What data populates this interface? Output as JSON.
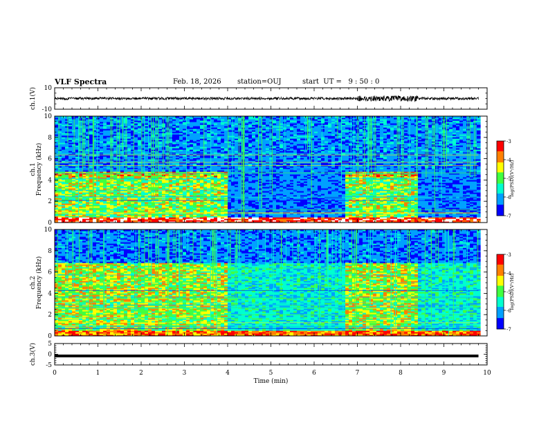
{
  "header": {
    "title": "VLF Spectra",
    "date": "Feb. 18, 2026",
    "station": "station=OUJ",
    "start": "start  UT =   9 : 50 : 0"
  },
  "chart_data": [
    {
      "type": "line",
      "panel": "waveform-ch1",
      "ylabel": "ch.1(V)",
      "ylim": [
        -10,
        10
      ],
      "ytick_labels": [
        "10",
        "-10"
      ],
      "xlim": [
        0,
        10
      ],
      "description_series": "dense waveform centred on 0 V, amplitude roughly ±1.5 V with bursts up to ±3 V near 7–8 min"
    },
    {
      "type": "heatmap",
      "panel": "spectrogram-ch1",
      "ylabel": "ch.1\nFrequency (kHz)",
      "ylim": [
        0,
        10
      ],
      "yticks": [
        0,
        2,
        4,
        6,
        8,
        10
      ],
      "xlim": [
        0,
        10
      ],
      "colorbar": {
        "label": "log(PSD)(V²/Hz)",
        "range": [
          -7,
          -3
        ],
        "ticks": [
          -3,
          -4,
          -5,
          -6,
          -7
        ]
      },
      "segments_min": [
        [
          0,
          4,
          "high"
        ],
        [
          4,
          6.7,
          "low"
        ],
        [
          6.7,
          8.4,
          "high"
        ],
        [
          8.4,
          9.8,
          "low"
        ]
      ]
    },
    {
      "type": "heatmap",
      "panel": "spectrogram-ch2",
      "ylabel": "ch.2\nFrequency (kHz)",
      "ylim": [
        0,
        10
      ],
      "yticks": [
        0,
        2,
        4,
        6,
        8,
        10
      ],
      "xlim": [
        0,
        10
      ],
      "colorbar": {
        "label": "log(PSD)(V²/Hz)",
        "range": [
          -7,
          -3
        ],
        "ticks": [
          -3,
          -4,
          -5,
          -6,
          -7
        ]
      },
      "segments_min": [
        [
          0,
          4,
          "high"
        ],
        [
          4,
          6.7,
          "low"
        ],
        [
          6.7,
          8.4,
          "high"
        ],
        [
          8.4,
          9.8,
          "low"
        ]
      ]
    },
    {
      "type": "line",
      "panel": "waveform-ch3",
      "ylabel": "ch.3(V)",
      "ylim": [
        -5,
        5
      ],
      "ytick_labels": [
        "5",
        "0",
        "-5"
      ],
      "xlim": [
        0,
        10
      ],
      "constant_value": -0.8
    }
  ],
  "xaxis": {
    "label": "Time (min)",
    "ticks": [
      "0",
      "1",
      "2",
      "3",
      "4",
      "5",
      "6",
      "7",
      "8",
      "9",
      "10"
    ]
  },
  "colors": {
    "ink": "#000000",
    "colormap": [
      "#00007a",
      "#0000ff",
      "#00a0ff",
      "#00ffd0",
      "#40ff40",
      "#ffff00",
      "#ff8000",
      "#ff0000",
      "#ffffff"
    ]
  }
}
